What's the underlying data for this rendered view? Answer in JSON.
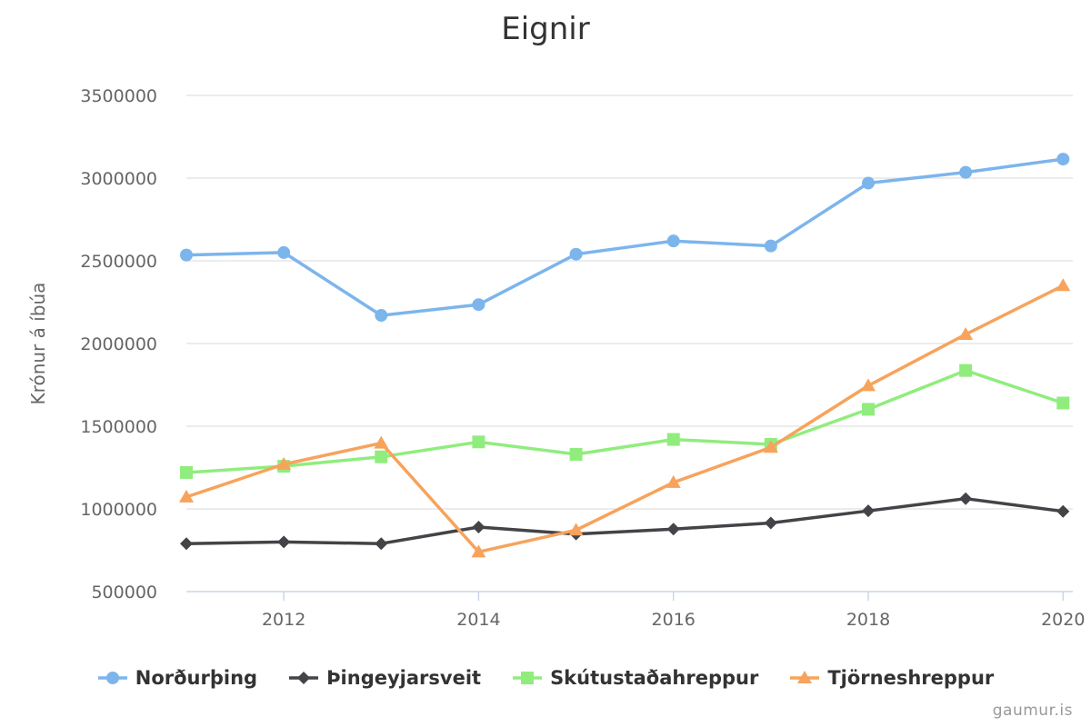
{
  "chart_data": {
    "type": "line",
    "title": "Eignir",
    "ylabel": "Krónur á íbúa",
    "xlabel": "",
    "x": [
      2011,
      2012,
      2013,
      2014,
      2015,
      2016,
      2017,
      2018,
      2019,
      2020
    ],
    "xlim": [
      2011,
      2020.1
    ],
    "xticks": [
      2012,
      2014,
      2016,
      2018,
      2020
    ],
    "ylim": [
      500000,
      3500000
    ],
    "yticks": [
      500000,
      1000000,
      1500000,
      2000000,
      2500000,
      3000000,
      3500000
    ],
    "grid": "horizontal",
    "legend_position": "bottom",
    "series": [
      {
        "name": "Norðurþing",
        "color": "#7cb5ec",
        "marker": "circle",
        "values": [
          2535000,
          2550000,
          2170000,
          2235000,
          2540000,
          2620000,
          2590000,
          2970000,
          3035000,
          3115000
        ]
      },
      {
        "name": "Þingeyjarsveit",
        "color": "#434348",
        "marker": "diamond",
        "values": [
          790000,
          800000,
          790000,
          890000,
          848000,
          878000,
          915000,
          988000,
          1062000,
          985000
        ]
      },
      {
        "name": "Skútustaðahreppur",
        "color": "#90ed7d",
        "marker": "square",
        "values": [
          1220000,
          1258000,
          1315000,
          1405000,
          1330000,
          1420000,
          1390000,
          1602000,
          1837000,
          1640000
        ]
      },
      {
        "name": "Tjörneshreppur",
        "color": "#f7a35c",
        "marker": "triangle",
        "values": [
          1072000,
          1270000,
          1398000,
          740000,
          872000,
          1160000,
          1372000,
          1745000,
          2055000,
          2350000
        ]
      }
    ],
    "credit": "gaumur.is"
  }
}
